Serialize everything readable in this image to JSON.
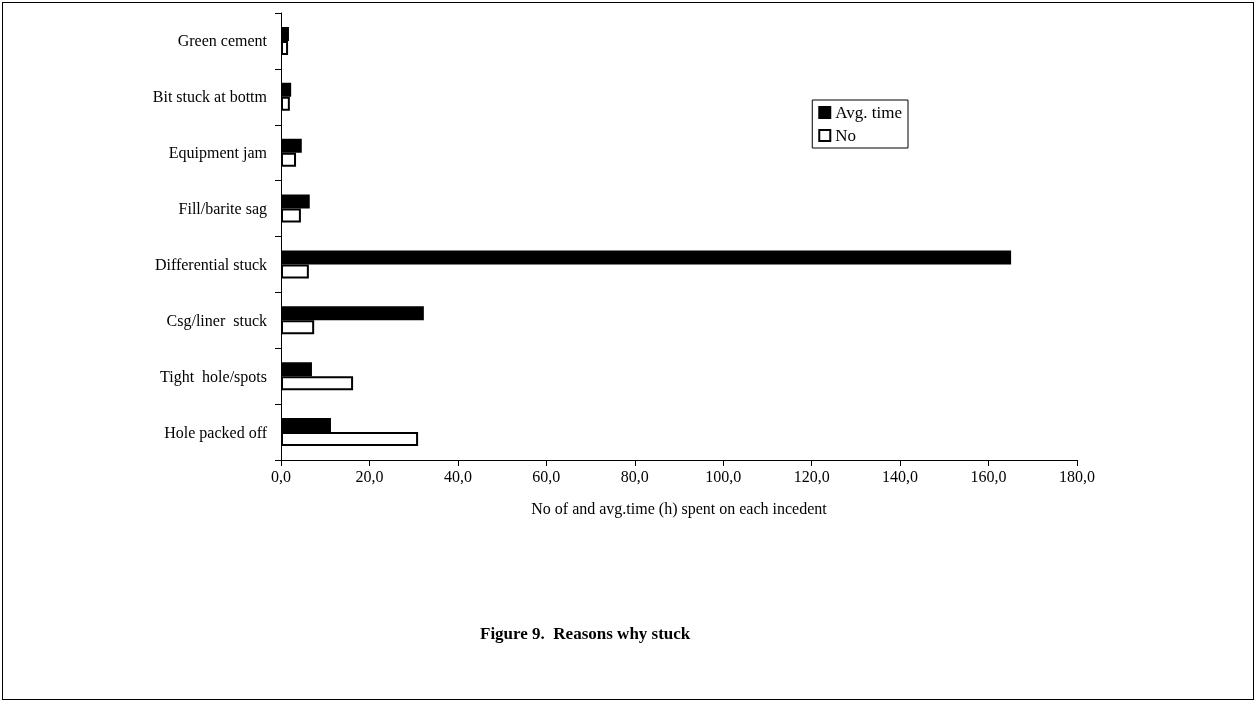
{
  "chart_data": {
    "type": "bar",
    "orientation": "horizontal",
    "title": "Figure 9.  Reasons why stuck",
    "xlabel": "No of and avg.time (h) spent on each incedent",
    "categories": [
      "Green cement",
      "Bit stuck at bottm",
      "Equipment jam",
      "Fill/barite sag",
      "Differential stuck",
      "Csg/liner  stuck",
      "Tight  hole/spots",
      "Hole packed off"
    ],
    "series": [
      {
        "name": "Avg. time",
        "color": "#000000",
        "values": [
          1.8,
          2.3,
          4.7,
          6.5,
          165.1,
          32.3,
          7.0,
          11.3
        ]
      },
      {
        "name": "No",
        "color": "#ffffff",
        "values": [
          1.6,
          2.0,
          3.4,
          4.5,
          6.3,
          7.5,
          16.3,
          31.0
        ]
      }
    ],
    "xlim": [
      0,
      180
    ],
    "xticks": [
      {
        "value": 0,
        "label": "0,0"
      },
      {
        "value": 20,
        "label": "20,0"
      },
      {
        "value": 40,
        "label": "40,0"
      },
      {
        "value": 60,
        "label": "60,0"
      },
      {
        "value": 80,
        "label": "80,0"
      },
      {
        "value": 100,
        "label": "100,0"
      },
      {
        "value": 120,
        "label": "120,0"
      },
      {
        "value": 140,
        "label": "140,0"
      },
      {
        "value": 160,
        "label": "160,0"
      },
      {
        "value": 180,
        "label": "180,0"
      }
    ],
    "grid": false,
    "legend": "top right"
  }
}
